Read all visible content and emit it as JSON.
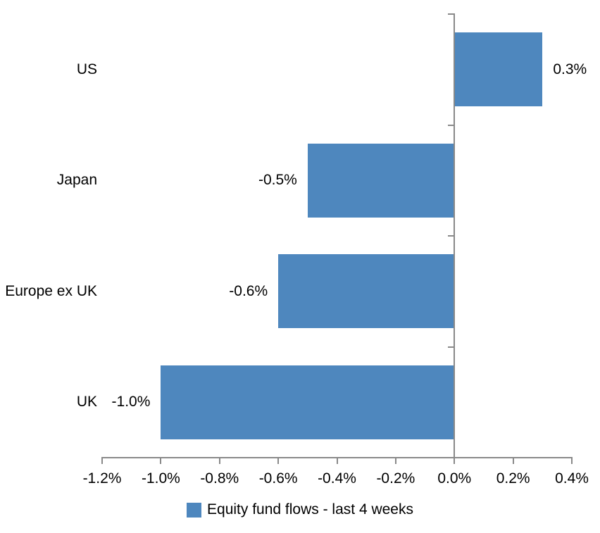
{
  "chart_data": {
    "type": "bar",
    "orientation": "horizontal",
    "title": "",
    "categories": [
      "US",
      "Japan",
      "Europe ex UK",
      "UK"
    ],
    "series": [
      {
        "name": "Equity fund flows - last 4 weeks",
        "values": [
          0.3,
          -0.5,
          -0.6,
          -1.0
        ],
        "data_labels": [
          "0.3%",
          "-0.5%",
          "-0.6%",
          "-1.0%"
        ],
        "color": "#4E87BE"
      }
    ],
    "xlabel": "",
    "ylabel": "",
    "value_unit": "%",
    "xlim": [
      -1.2,
      0.4
    ],
    "x_tick_values": [
      -1.2,
      -1.0,
      -0.8,
      -0.6,
      -0.4,
      -0.2,
      0.0,
      0.2,
      0.4
    ],
    "x_tick_labels": [
      "-1.2%",
      "-1.0%",
      "-0.8%",
      "-0.6%",
      "-0.4%",
      "-0.2%",
      "0.0%",
      "0.2%",
      "0.4%"
    ],
    "grid": false,
    "legend_position": "bottom",
    "axis_color": "#898989",
    "text_color": "#000000",
    "background_color": "#FFFFFF"
  },
  "legend": {
    "label": "Equity fund flows - last 4 weeks",
    "swatch_color": "#4E87BE"
  }
}
